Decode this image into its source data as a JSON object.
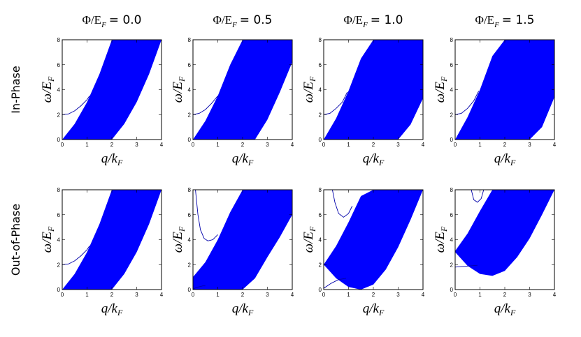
{
  "columns": [
    {
      "text": "Φ/E",
      "sub": "F",
      "value": "= 0.0"
    },
    {
      "text": "Φ/E",
      "sub": "F",
      "value": "= 0.5"
    },
    {
      "text": "Φ/E",
      "sub": "F",
      "value": "= 1.0"
    },
    {
      "text": "Φ/E",
      "sub": "F",
      "value": "= 1.5"
    }
  ],
  "rows": [
    "In-Phase",
    "Out-of-Phase"
  ],
  "chart_data": [
    {
      "type": "band",
      "xlabel": {
        "text": "q/k",
        "sub": "F"
      },
      "ylabel": {
        "text": "ω/E",
        "sub": "F"
      },
      "xlim": [
        0,
        4
      ],
      "ylim": [
        0,
        8
      ],
      "xticks": [
        0,
        1,
        2,
        3,
        4
      ],
      "yticks": [
        0,
        2,
        4,
        6,
        8
      ],
      "color": "#0000ff",
      "x": [
        0,
        0.5,
        1,
        1.5,
        2,
        2.5,
        3,
        3.5,
        4
      ],
      "upper": [
        0,
        1.25,
        3,
        5.25,
        8,
        8,
        8,
        8,
        8
      ],
      "lower": [
        0,
        0,
        0,
        0,
        0,
        1.25,
        3,
        5.25,
        8
      ],
      "curves": [
        {
          "color": "#0000aa",
          "x": [
            0,
            0.25,
            0.5,
            0.75,
            1.0,
            1.1
          ],
          "values": [
            2,
            2.05,
            2.3,
            2.7,
            3.2,
            3.5
          ]
        }
      ]
    },
    {
      "type": "band",
      "xlabel": {
        "text": "q/k",
        "sub": "F"
      },
      "ylabel": {
        "text": "ω/E",
        "sub": "F"
      },
      "xlim": [
        0,
        4
      ],
      "ylim": [
        0,
        8
      ],
      "xticks": [
        0,
        1,
        2,
        3,
        4
      ],
      "yticks": [
        0,
        2,
        4,
        6,
        8
      ],
      "color": "#0000ff",
      "x": [
        0,
        0.5,
        1,
        1.5,
        2,
        2.5,
        3,
        3.5,
        4
      ],
      "upper": [
        0,
        1.5,
        3.5,
        6,
        8,
        8,
        8,
        8,
        8
      ],
      "lower": [
        0,
        0,
        0,
        0,
        0,
        0,
        1.6,
        3.8,
        6.2
      ],
      "curves": [
        {
          "color": "#0000aa",
          "x": [
            0,
            0.25,
            0.5,
            0.75,
            1.0
          ],
          "values": [
            2,
            2.1,
            2.4,
            2.9,
            3.5
          ]
        }
      ]
    },
    {
      "type": "band",
      "xlabel": {
        "text": "q/k",
        "sub": "F"
      },
      "ylabel": {
        "text": "ω/E",
        "sub": "F"
      },
      "xlim": [
        0,
        4
      ],
      "ylim": [
        0,
        8
      ],
      "xticks": [
        0,
        1,
        2,
        3,
        4
      ],
      "yticks": [
        0,
        2,
        4,
        6,
        8
      ],
      "color": "#0000ff",
      "x": [
        0,
        0.5,
        1,
        1.5,
        2,
        2.5,
        3,
        3.5,
        4
      ],
      "upper": [
        0,
        1.7,
        3.9,
        6.5,
        8,
        8,
        8,
        8,
        8
      ],
      "lower": [
        0,
        0,
        0,
        0,
        0,
        0,
        0,
        1.2,
        3.3
      ],
      "curves": [
        {
          "color": "#0000aa",
          "x": [
            0,
            0.25,
            0.5,
            0.75,
            0.95
          ],
          "values": [
            2,
            2.1,
            2.5,
            3.0,
            3.8
          ]
        }
      ]
    },
    {
      "type": "band",
      "xlabel": {
        "text": "q/k",
        "sub": "F"
      },
      "ylabel": {
        "text": "ω/E",
        "sub": "F"
      },
      "xlim": [
        0,
        4
      ],
      "ylim": [
        0,
        8
      ],
      "xticks": [
        0,
        1,
        2,
        3,
        4
      ],
      "yticks": [
        0,
        2,
        4,
        6,
        8
      ],
      "color": "#0000ff",
      "x": [
        0,
        0.5,
        1,
        1.5,
        2,
        2.5,
        3,
        3.5,
        4
      ],
      "upper": [
        0,
        1.8,
        4,
        6.7,
        8,
        8,
        8,
        8,
        8
      ],
      "lower": [
        0,
        0,
        0,
        0,
        0,
        0,
        0,
        1.0,
        3.4
      ],
      "curves": [
        {
          "color": "#0000aa",
          "x": [
            0,
            0.25,
            0.5,
            0.75,
            0.95
          ],
          "values": [
            2,
            2.1,
            2.5,
            3.1,
            3.9
          ]
        }
      ]
    },
    {
      "type": "band",
      "xlabel": {
        "text": "q/k",
        "sub": "F"
      },
      "ylabel": {
        "text": "ω/E",
        "sub": "F"
      },
      "xlim": [
        0,
        4
      ],
      "ylim": [
        0,
        8
      ],
      "xticks": [
        0,
        1,
        2,
        3,
        4
      ],
      "yticks": [
        0,
        2,
        4,
        6,
        8
      ],
      "color": "#0000ff",
      "x": [
        0,
        0.5,
        1,
        1.5,
        2,
        2.5,
        3,
        3.5,
        4
      ],
      "upper": [
        0,
        1.25,
        3,
        5.25,
        8,
        8,
        8,
        8,
        8
      ],
      "lower": [
        0,
        0,
        0,
        0,
        0,
        1.25,
        3,
        5.25,
        8
      ],
      "curves": [
        {
          "color": "#0000aa",
          "x": [
            0,
            0.25,
            0.5,
            0.75,
            1.0,
            1.1
          ],
          "values": [
            2,
            2.05,
            2.3,
            2.7,
            3.2,
            3.5
          ]
        }
      ]
    },
    {
      "type": "band",
      "xlabel": {
        "text": "q/k",
        "sub": "F"
      },
      "ylabel": {
        "text": "ω/E",
        "sub": "F"
      },
      "xlim": [
        0,
        4
      ],
      "ylim": [
        0,
        8
      ],
      "xticks": [
        0,
        1,
        2,
        3,
        4
      ],
      "yticks": [
        0,
        2,
        4,
        6,
        8
      ],
      "color": "#0000ff",
      "x": [
        0,
        0.5,
        1,
        1.5,
        2,
        2.5,
        3,
        3.5,
        4
      ],
      "upper": [
        1.0,
        2.2,
        4,
        6.2,
        8,
        8,
        8,
        8,
        8
      ],
      "lower": [
        0,
        0,
        0,
        0,
        0,
        0.9,
        2.6,
        4.2,
        6
      ],
      "curves": [
        {
          "color": "#0000aa",
          "x": [
            0.1,
            0.2,
            0.3,
            0.45,
            0.6,
            0.8,
            1.0
          ],
          "values": [
            8,
            6,
            4.8,
            4.1,
            3.9,
            4.0,
            4.4
          ]
        },
        {
          "color": "#0000aa",
          "x": [
            0,
            0.2,
            0.4,
            0.5
          ],
          "values": [
            0.05,
            0.2,
            0.3,
            0.3
          ]
        }
      ]
    },
    {
      "type": "band",
      "xlabel": {
        "text": "q/k",
        "sub": "F"
      },
      "ylabel": {
        "text": "ω/E",
        "sub": "F"
      },
      "xlim": [
        0,
        4
      ],
      "ylim": [
        0,
        8
      ],
      "xticks": [
        0,
        1,
        2,
        3,
        4
      ],
      "yticks": [
        0,
        2,
        4,
        6,
        8
      ],
      "color": "#0000ff",
      "x": [
        0,
        0.5,
        1,
        1.5,
        2,
        2.5,
        3,
        3.5,
        4
      ],
      "upper": [
        2,
        3.5,
        5.4,
        7.5,
        8,
        8,
        8,
        8,
        8
      ],
      "lower": [
        2,
        0.9,
        0.2,
        0,
        0.4,
        1.6,
        3.4,
        5.6,
        8
      ],
      "curves": [
        {
          "color": "#0000aa",
          "x": [
            0.35,
            0.45,
            0.6,
            0.8,
            1.0,
            1.15
          ],
          "values": [
            8,
            7,
            6.1,
            5.8,
            6.1,
            6.7
          ]
        },
        {
          "color": "#0000aa",
          "x": [
            0,
            0.3,
            0.6,
            0.9
          ],
          "values": [
            0.1,
            0.5,
            0.8,
            0.9
          ]
        }
      ]
    },
    {
      "type": "band",
      "xlabel": {
        "text": "q/k",
        "sub": "F"
      },
      "ylabel": {
        "text": "ω/E",
        "sub": "F"
      },
      "xlim": [
        0,
        4
      ],
      "ylim": [
        0,
        8
      ],
      "xticks": [
        0,
        1,
        2,
        3,
        4
      ],
      "yticks": [
        0,
        2,
        4,
        6,
        8
      ],
      "color": "#0000ff",
      "x": [
        0,
        0.5,
        1,
        1.5,
        2,
        2.5,
        3,
        3.5,
        4
      ],
      "upper": [
        3.1,
        4.5,
        6.3,
        8,
        8,
        8,
        8,
        8,
        8
      ],
      "lower": [
        3,
        1.9,
        1.25,
        1.1,
        1.5,
        2.6,
        4.1,
        6,
        8
      ],
      "curves": [
        {
          "color": "#0000aa",
          "x": [
            0.65,
            0.75,
            0.9,
            1.05,
            1.15
          ],
          "values": [
            8,
            7.2,
            7,
            7.3,
            8
          ]
        },
        {
          "color": "#0000aa",
          "x": [
            0,
            0.3,
            0.6,
            0.9
          ],
          "values": [
            1.8,
            1.85,
            1.9,
            1.95
          ]
        }
      ]
    }
  ]
}
